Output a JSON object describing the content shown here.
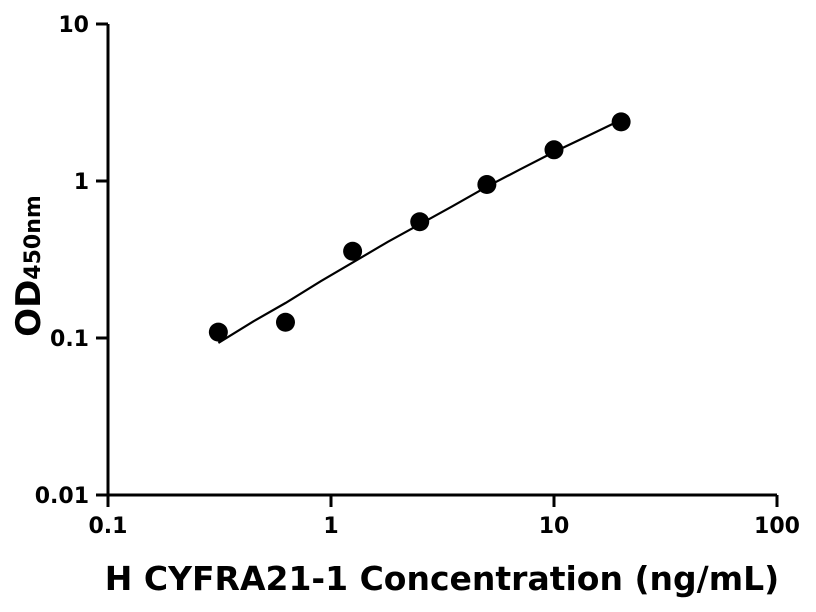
{
  "chart_data": {
    "type": "scatter",
    "title": "",
    "xlabel": "H CYFRA21-1 Concentration (ng/mL)",
    "ylabel": "OD",
    "ylabel_subscript": "450nm",
    "x_scale": "log",
    "y_scale": "log",
    "xlim": [
      0.1,
      100
    ],
    "ylim": [
      0.01,
      10
    ],
    "x_ticks": [
      0.1,
      1,
      10,
      100
    ],
    "x_tick_labels": [
      "0.1",
      "1",
      "10",
      "100"
    ],
    "y_ticks": [
      0.01,
      0.1,
      1,
      10
    ],
    "y_tick_labels": [
      "0.01",
      "0.1",
      "1",
      "10"
    ],
    "grid": false,
    "legend": "none",
    "series": [
      {
        "x": [
          0.3125,
          0.625,
          1.25,
          2.5,
          5,
          10,
          20
        ],
        "y": [
          0.109,
          0.126,
          0.357,
          0.55,
          0.95,
          1.58,
          2.38
        ]
      }
    ],
    "fit_curve": {
      "x": [
        0.3125,
        0.45,
        0.625,
        0.9,
        1.25,
        1.8,
        2.5,
        3.5,
        5,
        7,
        10,
        14,
        20
      ],
      "y": [
        0.093,
        0.128,
        0.167,
        0.23,
        0.302,
        0.41,
        0.53,
        0.69,
        0.92,
        1.18,
        1.53,
        1.92,
        2.45
      ]
    },
    "colors": {
      "axis": "#000000",
      "points": "#000000",
      "curve": "#000000"
    }
  }
}
